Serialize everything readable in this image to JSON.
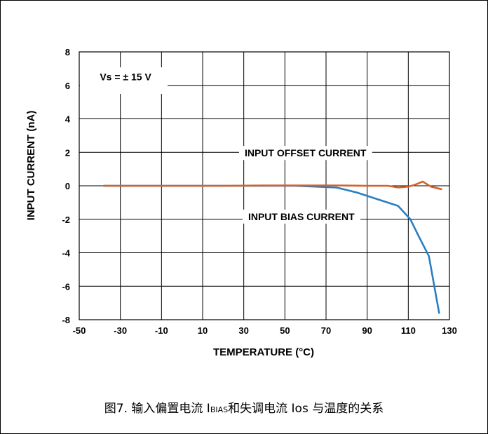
{
  "chart_data": {
    "type": "line",
    "title": "",
    "xlabel": "TEMPERATURE (°C)",
    "ylabel": "INPUT CURRENT (nA)",
    "xlim": [
      -50,
      130
    ],
    "ylim": [
      -8,
      8
    ],
    "x_ticks": [
      "-50",
      "-30",
      "-10",
      "10",
      "30",
      "50",
      "70",
      "90",
      "110",
      "130"
    ],
    "y_ticks": [
      "8",
      "6",
      "4",
      "2",
      "0",
      "-2",
      "-4",
      "-6",
      "-8"
    ],
    "grid": true,
    "condition_label": "Vs = ± 15 V",
    "series": [
      {
        "name": "INPUT OFFSET CURRENT",
        "color": "#d4622a",
        "x": [
          -38,
          -20,
          0,
          20,
          40,
          60,
          75,
          90,
          100,
          105,
          110,
          113,
          117,
          121,
          126
        ],
        "y": [
          0,
          0,
          0,
          0,
          0.02,
          0.02,
          0.02,
          0,
          0,
          -0.1,
          -0.05,
          0.05,
          0.25,
          -0.05,
          -0.2
        ]
      },
      {
        "name": "INPUT BIAS CURRENT",
        "color": "#2a7fc1",
        "x": [
          -38,
          -20,
          0,
          20,
          40,
          55,
          65,
          75,
          85,
          95,
          105,
          111,
          115,
          120,
          125
        ],
        "y": [
          0,
          0,
          0,
          0,
          0,
          0,
          -0.05,
          -0.1,
          -0.4,
          -0.8,
          -1.2,
          -2.0,
          -3.0,
          -4.2,
          -7.6
        ]
      }
    ]
  },
  "caption": {
    "prefix": "图7. 输入偏置电流 I",
    "sub1": "BIAS",
    "middle": "和失调电流 Ios 与温度的关系"
  }
}
